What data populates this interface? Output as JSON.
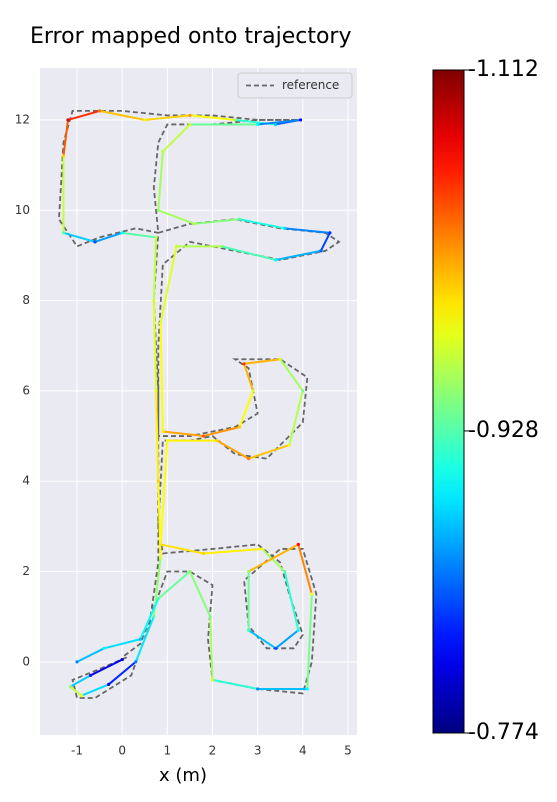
{
  "chart_data": {
    "type": "trajectory",
    "title": "Error mapped onto trajectory",
    "xlabel": "x (m)",
    "xlim": [
      -1.82,
      5.2
    ],
    "ylim": [
      -1.62,
      13.15
    ],
    "xticks": [
      -1,
      0,
      1,
      2,
      3,
      4,
      5
    ],
    "yticks": [
      0,
      2,
      4,
      6,
      8,
      10,
      12
    ],
    "grid": true,
    "background": "#eaeaf2",
    "legend": "upper right",
    "series": [
      {
        "name": "reference",
        "color": "#666666",
        "style": "dashed",
        "x": [
          0.1,
          -0.6,
          -1.1,
          -1.0,
          -0.6,
          0.2,
          0.6,
          0.8,
          0.8,
          0.8,
          0.7,
          0.8,
          0.3,
          -0.5,
          -1.0,
          -1.4,
          -1.3,
          -1.1,
          0,
          1,
          2,
          3,
          3.9,
          3,
          2,
          1,
          0.8,
          0.7,
          0.8,
          1.5,
          2.5,
          3.5,
          4.5,
          4.8,
          4.5,
          3.5,
          2.5,
          1.5,
          0.9,
          0.8,
          0.8,
          1.5,
          2.5,
          3,
          2.8,
          2.5,
          3.5,
          4.1,
          4.0,
          3.2,
          2.5,
          2,
          1.5,
          0.9,
          0.8,
          0.9,
          2,
          3,
          3.5,
          3.7,
          4,
          3.8,
          3.2,
          2.8,
          2.7,
          3.5,
          4.0,
          4.3,
          4.2,
          4.0,
          3,
          2,
          1.9,
          2,
          1.5,
          1,
          0.7,
          0.4,
          0
        ],
        "y": [
          0.1,
          -0.2,
          -0.4,
          -0.8,
          -0.8,
          -0.3,
          0.8,
          2.2,
          4,
          6,
          8,
          9.5,
          9.6,
          9.4,
          9.2,
          9.8,
          11.5,
          12.2,
          12.2,
          12.1,
          12.1,
          12,
          12,
          12,
          11.9,
          11.9,
          11.5,
          10.5,
          9.5,
          9.7,
          9.8,
          9.6,
          9.5,
          9.3,
          9.1,
          8.9,
          9.1,
          9.3,
          8.8,
          7,
          5,
          5,
          5.2,
          5.5,
          6.5,
          6.7,
          6.7,
          6.3,
          5.3,
          4.5,
          4.6,
          5,
          4.9,
          4.9,
          3,
          2.4,
          2.5,
          2.6,
          2.2,
          1.5,
          0.6,
          0.3,
          0.3,
          0.8,
          1.8,
          2.5,
          2.5,
          1.5,
          0,
          -0.7,
          -0.6,
          -0.4,
          0.5,
          1.7,
          2.0,
          2.0,
          1.2,
          0.4,
          0.1
        ]
      },
      {
        "color": "jet",
        "x": [
          0.0,
          -0.7,
          -1.15,
          -0.9,
          -0.3,
          0.3,
          0.7,
          0.85,
          0.8,
          0.75,
          0.7,
          0.75,
          0.0,
          -0.6,
          -1.3,
          -1.3,
          -1.2,
          -0.5,
          0.5,
          1.5,
          2.5,
          3.4,
          3.95,
          3.0,
          1.5,
          0.9,
          0.8,
          1.6,
          2.6,
          3.6,
          4.6,
          4.4,
          3.4,
          2.2,
          1.2,
          0.85,
          0.9,
          1.8,
          2.6,
          2.9,
          2.7,
          3.5,
          4.0,
          3.7,
          2.8,
          2.1,
          1.0,
          0.85,
          1.8,
          3.1,
          3.6,
          3.9,
          3.4,
          2.8,
          2.8,
          3.9,
          4.2,
          4.1,
          3.0,
          2.0,
          1.95,
          1.5,
          0.8,
          0.4,
          -0.4,
          -1.0
        ],
        "y": [
          0.05,
          -0.3,
          -0.55,
          -0.75,
          -0.5,
          0.0,
          1.0,
          2.3,
          4.0,
          6.0,
          8.0,
          9.4,
          9.5,
          9.3,
          9.5,
          11.2,
          12.0,
          12.2,
          12.0,
          12.1,
          12.0,
          11.9,
          12.0,
          11.9,
          11.9,
          11.3,
          10.0,
          9.7,
          9.8,
          9.6,
          9.5,
          9.1,
          8.9,
          9.2,
          9.2,
          7.5,
          5.1,
          5.0,
          5.2,
          6.0,
          6.6,
          6.7,
          6.0,
          4.8,
          4.5,
          4.9,
          4.9,
          2.6,
          2.4,
          2.5,
          2.0,
          0.7,
          0.3,
          0.7,
          2.0,
          2.6,
          1.5,
          -0.6,
          -0.6,
          -0.4,
          1.0,
          2.0,
          1.4,
          0.5,
          0.3,
          0.0
        ],
        "values": [
          -0.8,
          -0.82,
          -0.95,
          -0.98,
          -0.8,
          -0.86,
          -0.93,
          -0.97,
          -1.0,
          -0.98,
          -0.97,
          -0.96,
          -0.9,
          -0.84,
          -0.93,
          -1.0,
          -1.08,
          -1.03,
          -0.98,
          -1.02,
          -0.95,
          -0.88,
          -0.82,
          -0.9,
          -0.97,
          -0.96,
          -0.95,
          -0.96,
          -0.93,
          -0.89,
          -0.83,
          -0.85,
          -0.9,
          -0.95,
          -0.97,
          -0.98,
          -0.99,
          -1.04,
          -1.0,
          -0.97,
          -1.05,
          -0.97,
          -0.94,
          -0.98,
          -1.03,
          -1.0,
          -0.98,
          -0.99,
          -1.0,
          -0.98,
          -0.93,
          -0.9,
          -0.84,
          -0.92,
          -0.95,
          -1.07,
          -0.98,
          -0.9,
          -0.86,
          -0.97,
          -0.94,
          -0.95,
          -0.92,
          -0.88,
          -0.9,
          -0.86
        ]
      }
    ],
    "colorbar": {
      "cmap": "jet",
      "clim": [
        -0.774,
        -1.112
      ],
      "ticks": [
        -1.112,
        -0.928,
        -0.774
      ]
    }
  }
}
